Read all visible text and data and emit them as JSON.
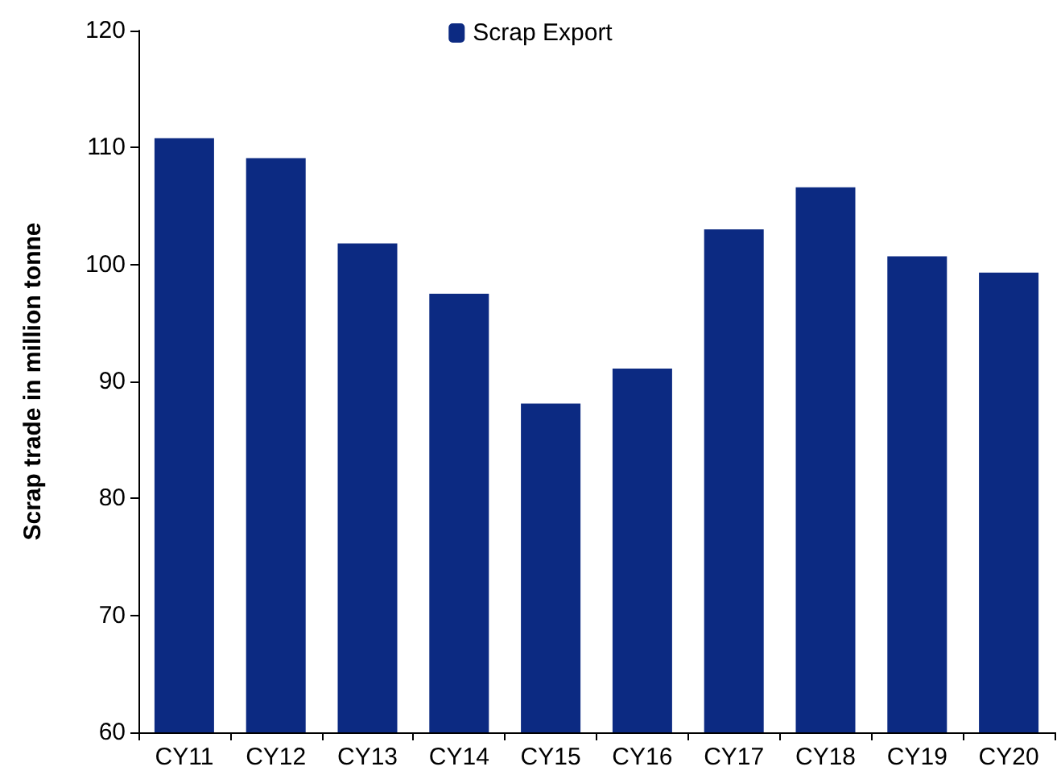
{
  "chart_data": {
    "type": "bar",
    "ylabel": "Scrap trade in million tonne",
    "categories": [
      "CY11",
      "CY12",
      "CY13",
      "CY14",
      "CY15",
      "CY16",
      "CY17",
      "CY18",
      "CY19",
      "CY20"
    ],
    "series": [
      {
        "name": "Scrap Export",
        "color": "#0c2a82",
        "values": [
          110.8,
          109.1,
          101.8,
          97.5,
          88.1,
          91.1,
          103.0,
          106.6,
          100.7,
          99.3
        ]
      }
    ],
    "ylim": [
      60,
      120
    ],
    "yticks": [
      60,
      70,
      80,
      90,
      100,
      110,
      120
    ],
    "grid": false,
    "legend": "top"
  }
}
